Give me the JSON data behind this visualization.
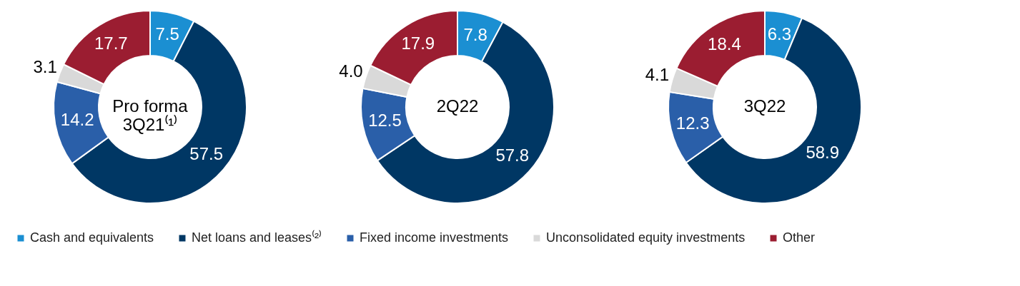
{
  "chart_data": [
    {
      "type": "donut",
      "title": "Pro forma\n3Q21⁽¹⁾",
      "categories": [
        "Cash and equivalents",
        "Net loans and leases⁽²⁾",
        "Fixed income investments",
        "Unconsolidated equity investments",
        "Other"
      ],
      "values": [
        7.5,
        57.5,
        14.2,
        3.1,
        17.7
      ],
      "colors": [
        "#1b8fd2",
        "#003764",
        "#2a5fa9",
        "#d9d9d9",
        "#9b1d31"
      ],
      "value_labels": [
        "7.5",
        "57.5",
        "14.2",
        "3.1",
        "17.7"
      ],
      "legend": "bottom"
    },
    {
      "type": "donut",
      "title": "2Q22",
      "values": [
        7.8,
        57.8,
        12.5,
        4.0,
        17.9
      ],
      "colors": [
        "#1b8fd2",
        "#003764",
        "#2a5fa9",
        "#d9d9d9",
        "#9b1d31"
      ],
      "value_labels": [
        "7.8",
        "57.8",
        "12.5",
        "4.0",
        "17.9"
      ]
    },
    {
      "type": "donut",
      "title": "3Q22",
      "values": [
        6.3,
        58.9,
        12.3,
        4.1,
        18.4
      ],
      "colors": [
        "#1b8fd2",
        "#003764",
        "#2a5fa9",
        "#d9d9d9",
        "#9b1d31"
      ],
      "value_labels": [
        "6.3",
        "58.9",
        "12.3",
        "4.1",
        "18.4"
      ]
    }
  ]
}
